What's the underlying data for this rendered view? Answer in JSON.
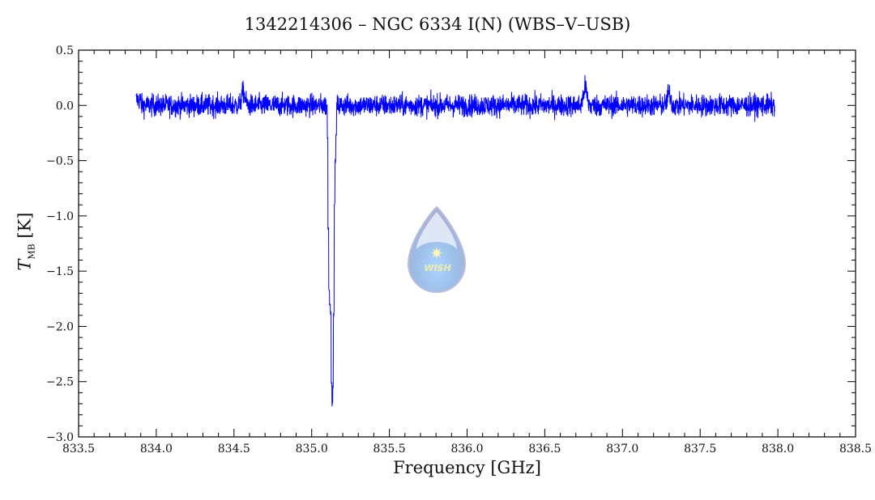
{
  "chart_data": {
    "type": "line",
    "title": "1342214306 – NGC 6334 I(N) (WBS–V–USB)",
    "xlabel": "Frequency [GHz]",
    "ylabel_main": "T",
    "ylabel_sub": "MB",
    "ylabel_unit": "[K]",
    "xlim": [
      833.5,
      838.5
    ],
    "ylim": [
      -3.0,
      0.5
    ],
    "xticks": [
      "833.5",
      "834.0",
      "834.5",
      "835.0",
      "835.5",
      "836.0",
      "836.5",
      "837.0",
      "837.5",
      "838.0",
      "838.5"
    ],
    "yticks": [
      "0.5",
      "0.0",
      "−0.5",
      "−1.0",
      "−1.5",
      "−2.0",
      "−2.5",
      "−3.0"
    ],
    "grid": false,
    "series": [
      {
        "name": "spectrum",
        "color": "#0000ff",
        "x_range": [
          833.87,
          837.98
        ],
        "baseline": 0.0,
        "noise_rms": 0.05,
        "absorption_profile": {
          "x": [
            835.095,
            835.1,
            835.105,
            835.11,
            835.115,
            835.12,
            835.125,
            835.13,
            835.135,
            835.14,
            835.145,
            835.15,
            835.155,
            835.16
          ],
          "y": [
            0.0,
            -0.3,
            -1.11,
            -1.66,
            -1.8,
            -1.88,
            -2.5,
            -2.7,
            -2.55,
            -1.89,
            -0.89,
            -0.5,
            -0.27,
            -0.08
          ]
        },
        "emission_bumps": [
          {
            "x": 834.56,
            "peak": 0.2
          },
          {
            "x": 836.76,
            "peak": 0.28
          },
          {
            "x": 837.3,
            "peak": 0.18
          }
        ]
      }
    ],
    "watermark": {
      "text": "WISH"
    }
  }
}
